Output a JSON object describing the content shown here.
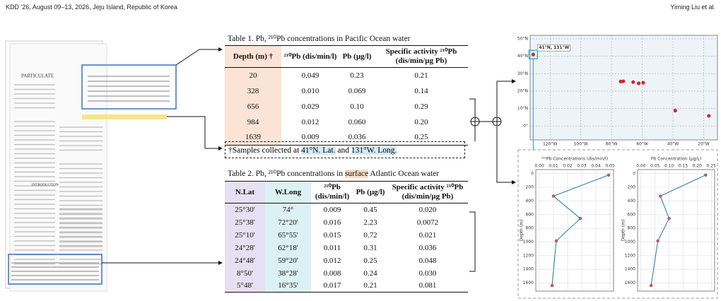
{
  "header": {
    "left": "KDD '26, August 09–13, 2026, Jeju Island, Republic of Korea",
    "right": "Yiming Liu et al."
  },
  "paper": {
    "title": "PARTICULATE",
    "section": "INTRODUCTION"
  },
  "table1": {
    "title": "Table 1. Pb, ²¹⁰Pb concentrations in Pacific Ocean water",
    "columns": [
      "Depth (m) †",
      "²¹⁰Pb (dis/min/l)",
      "Pb (µg/l)",
      "Specific activity ²¹⁰Pb (dis/min/µg Pb)"
    ],
    "rows": [
      [
        "20",
        "0.049",
        "0.23",
        "0.21"
      ],
      [
        "328",
        "0.010",
        "0.069",
        "0.14"
      ],
      [
        "656",
        "0.029",
        "0.10",
        "0.29"
      ],
      [
        "984",
        "0.012",
        "0.060",
        "0.20"
      ],
      [
        "1639",
        "0.009",
        "0.036",
        "0.25"
      ]
    ]
  },
  "footnote": {
    "parts": [
      "†Samples collected at ",
      "41°N. Lat.",
      " and ",
      "131°W. Long."
    ]
  },
  "table2": {
    "title_parts": [
      "Table 2. Pb, ²¹⁰Pb concentrations in ",
      "surface",
      " Atlantic Ocean water"
    ],
    "columns": [
      "N.Lat",
      "W.Long",
      "²¹⁰Pb (dis/min/l)",
      "Pb (µg/l)",
      "Specific activity ²¹⁰Pb (dis/min/µg Pb)"
    ],
    "rows": [
      [
        "25°30'",
        "74°",
        "0.009",
        "0.45",
        "0.020"
      ],
      [
        "25°38'",
        "72°20'",
        "0.016",
        "2.23",
        "0.0072"
      ],
      [
        "25°10'",
        "65°55'",
        "0.015",
        "0.72",
        "0.021"
      ],
      [
        "24°28'",
        "62°18'",
        "0.011",
        "0.31",
        "0.036"
      ],
      [
        "24°48'",
        "59°20'",
        "0.012",
        "0.25",
        "0.048"
      ],
      [
        "8°50'",
        "38°28'",
        "0.008",
        "0.24",
        "0.030"
      ],
      [
        "5°48'",
        "16°35'",
        "0.017",
        "0.21",
        "0.081"
      ]
    ]
  },
  "chart_data": [
    {
      "type": "scatter",
      "annotation": "41°N, 131°W",
      "color": "#d62728",
      "grid": true,
      "x": [
        -131,
        -74,
        -72.33,
        -65.92,
        -62.3,
        -59.33,
        -38.47,
        -16.58
      ],
      "values": [
        41,
        25.5,
        25.63,
        25.17,
        24.47,
        24.8,
        8.83,
        5.8
      ],
      "xlim": [
        -133,
        -11
      ],
      "ylim": [
        -8,
        52
      ],
      "xticks": [
        {
          "value": -120,
          "label": "120°W"
        },
        {
          "value": -100,
          "label": "100°W"
        },
        {
          "value": -80,
          "label": "80°W"
        },
        {
          "value": -60,
          "label": "60°W"
        },
        {
          "value": -40,
          "label": "40°W"
        },
        {
          "value": -20,
          "label": "20°W"
        }
      ],
      "yticks": [
        {
          "value": 0,
          "label": "0°"
        },
        {
          "value": 10,
          "label": "10°N"
        },
        {
          "value": 20,
          "label": "20°N"
        },
        {
          "value": 30,
          "label": "30°N"
        },
        {
          "value": 40,
          "label": "40°N"
        },
        {
          "value": 50,
          "label": "50°N"
        }
      ]
    },
    {
      "type": "profile",
      "title": "²¹⁰Pb Concentrations (dis/min/l)",
      "ylabel": "Depth (m)",
      "color": "#1f77b4",
      "marker_color": "#e05252",
      "grid": true,
      "depth": [
        20,
        328,
        656,
        984,
        1639
      ],
      "values": [
        0.049,
        0.01,
        0.029,
        0.012,
        0.009
      ],
      "xlim": [
        -0.0025,
        0.0525
      ],
      "ylim": [
        -60,
        1720
      ],
      "y_inverted": true,
      "xticks": [
        {
          "value": 0,
          "label": "0.00"
        },
        {
          "value": 0.01,
          "label": "0.01"
        },
        {
          "value": 0.02,
          "label": "0.02"
        },
        {
          "value": 0.03,
          "label": "0.03"
        },
        {
          "value": 0.04,
          "label": "0.04"
        },
        {
          "value": 0.05,
          "label": "0.05"
        }
      ],
      "yticks": [
        0,
        200,
        400,
        600,
        800,
        1000,
        1200,
        1400,
        1600
      ]
    },
    {
      "type": "profile",
      "title": "Pb Concentration (µg/L)",
      "ylabel": "Depth (m)",
      "color": "#1f77b4",
      "marker_color": "#e05252",
      "grid": true,
      "depth": [
        20,
        328,
        656,
        984,
        1639
      ],
      "values": [
        0.23,
        0.069,
        0.1,
        0.06,
        0.036
      ],
      "xlim": [
        -0.012,
        0.262
      ],
      "ylim": [
        -60,
        1720
      ],
      "y_inverted": true,
      "xticks": [
        {
          "value": 0,
          "label": "0.00"
        },
        {
          "value": 0.05,
          "label": "0.05"
        },
        {
          "value": 0.1,
          "label": "0.10"
        },
        {
          "value": 0.15,
          "label": "0.15"
        },
        {
          "value": 0.2,
          "label": "0.20"
        },
        {
          "value": 0.25,
          "label": "0.25"
        }
      ],
      "yticks": [
        0,
        200,
        400,
        600,
        800,
        1000,
        1200,
        1400,
        1600
      ]
    }
  ]
}
